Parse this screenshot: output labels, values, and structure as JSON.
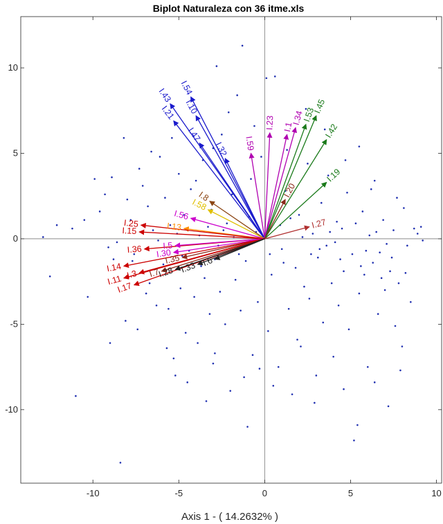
{
  "chart_data": {
    "type": "scatter",
    "title": "Biplot Naturaleza con 36 itme.xls",
    "xlabel": "Axis 1 - ( 14.2632% )",
    "ylabel": "",
    "xlim": [
      -14.2,
      10.3
    ],
    "ylim": [
      -14.3,
      13.0
    ],
    "xticks": [
      -10,
      -5,
      0,
      5,
      10
    ],
    "yticks": [
      -10,
      -5,
      0,
      5,
      10
    ],
    "xtick_labels": [
      "-10",
      "-5",
      "0",
      "5",
      "10"
    ],
    "ytick_labels": [
      "-10",
      "-5",
      "0",
      "5",
      "10"
    ],
    "grid": false,
    "origin_lines": true,
    "point_color": "#1f2fb0",
    "vectors": [
      {
        "name": "I.43",
        "x": -5.5,
        "y": 7.9,
        "color": "#1a1acc"
      },
      {
        "name": "I.54",
        "x": -4.3,
        "y": 8.3,
        "color": "#1a1acc"
      },
      {
        "name": "I.10",
        "x": -4.0,
        "y": 7.2,
        "color": "#1a1acc"
      },
      {
        "name": "I.21",
        "x": -5.3,
        "y": 6.9,
        "color": "#1a1acc"
      },
      {
        "name": "I.47",
        "x": -3.8,
        "y": 5.6,
        "color": "#1a1acc"
      },
      {
        "name": "I.32",
        "x": -2.3,
        "y": 4.7,
        "color": "#1a1acc"
      },
      {
        "name": "I.59",
        "x": -0.8,
        "y": 5.0,
        "color": "#b000b0"
      },
      {
        "name": "I.23",
        "x": 0.3,
        "y": 6.2,
        "color": "#b000b0"
      },
      {
        "name": "I.1",
        "x": 1.3,
        "y": 6.1,
        "color": "#b000b0"
      },
      {
        "name": "I.34",
        "x": 1.8,
        "y": 6.5,
        "color": "#b000b0"
      },
      {
        "name": "I.53",
        "x": 2.4,
        "y": 6.7,
        "color": "#1a7a1a"
      },
      {
        "name": "I.45",
        "x": 3.0,
        "y": 7.2,
        "color": "#1a7a1a"
      },
      {
        "name": "I.42",
        "x": 3.6,
        "y": 5.8,
        "color": "#1a7a1a"
      },
      {
        "name": "I.19",
        "x": 3.6,
        "y": 3.3,
        "color": "#1a7a1a"
      },
      {
        "name": "I.20",
        "x": 1.2,
        "y": 2.3,
        "color": "#8b2a1a"
      },
      {
        "name": "I.27",
        "x": 2.6,
        "y": 0.7,
        "color": "#b03030"
      },
      {
        "name": "I.8",
        "x": -3.2,
        "y": 2.2,
        "color": "#8b4513"
      },
      {
        "name": "I.58",
        "x": -3.3,
        "y": 1.7,
        "color": "#e0c000"
      },
      {
        "name": "I.56",
        "x": -4.3,
        "y": 1.2,
        "color": "#cc00cc"
      },
      {
        "name": "I.13",
        "x": -4.7,
        "y": 0.6,
        "color": "#ff8c00"
      },
      {
        "name": "I.25",
        "x": -7.2,
        "y": 0.8,
        "color": "#cc0000"
      },
      {
        "name": "I.15",
        "x": -7.3,
        "y": 0.4,
        "color": "#cc0000"
      },
      {
        "name": "I.36",
        "x": -7.0,
        "y": -0.6,
        "color": "#cc0000"
      },
      {
        "name": "I.5",
        "x": -5.2,
        "y": -0.4,
        "color": "#cc00cc"
      },
      {
        "name": "I.30",
        "x": -5.3,
        "y": -0.8,
        "color": "#cc00cc"
      },
      {
        "name": "I.35",
        "x": -4.8,
        "y": -1.1,
        "color": "#8b2a1a"
      },
      {
        "name": "I.14",
        "x": -8.2,
        "y": -1.6,
        "color": "#cc0000"
      },
      {
        "name": "I.11",
        "x": -8.2,
        "y": -2.3,
        "color": "#cc0000"
      },
      {
        "name": "I.17",
        "x": -7.6,
        "y": -2.7,
        "color": "#cc0000"
      },
      {
        "name": "I.3",
        "x": -7.3,
        "y": -2.0,
        "color": "#cc0000"
      },
      {
        "name": "I.7",
        "x": -6.0,
        "y": -1.9,
        "color": "#8b2a1a"
      },
      {
        "name": "I.28",
        "x": -5.2,
        "y": -1.8,
        "color": "#222222"
      },
      {
        "name": "I.33",
        "x": -3.9,
        "y": -1.5,
        "color": "#222222"
      },
      {
        "name": "I.6",
        "x": -2.9,
        "y": -1.2,
        "color": "#222222"
      }
    ],
    "points": [
      [
        -12.5,
        -2.2
      ],
      [
        -12.9,
        0.1
      ],
      [
        -12.1,
        0.8
      ],
      [
        -11.2,
        0.6
      ],
      [
        -11.0,
        -9.2
      ],
      [
        -10.3,
        -3.4
      ],
      [
        -9.9,
        3.5
      ],
      [
        -9.6,
        1.6
      ],
      [
        -9.3,
        2.6
      ],
      [
        -9.0,
        -6.1
      ],
      [
        -8.8,
        -1.2
      ],
      [
        -8.6,
        -0.2
      ],
      [
        -8.4,
        -13.1
      ],
      [
        -8.2,
        5.9
      ],
      [
        -8.1,
        -4.8
      ],
      [
        -8.0,
        2.3
      ],
      [
        -7.8,
        1.1
      ],
      [
        -7.6,
        -0.9
      ],
      [
        -7.4,
        -5.3
      ],
      [
        -7.1,
        3.1
      ],
      [
        -6.8,
        1.9
      ],
      [
        -6.7,
        -2.6
      ],
      [
        -6.5,
        0.5
      ],
      [
        -6.3,
        -3.9
      ],
      [
        -6.1,
        4.8
      ],
      [
        -5.9,
        -1.5
      ],
      [
        -5.8,
        2.4
      ],
      [
        -5.6,
        -4.1
      ],
      [
        -5.5,
        0.8
      ],
      [
        -5.3,
        -7.0
      ],
      [
        -5.2,
        -8.0
      ],
      [
        -5.0,
        3.8
      ],
      [
        -4.9,
        -2.9
      ],
      [
        -4.7,
        1.4
      ],
      [
        -4.6,
        -5.5
      ],
      [
        -4.4,
        -0.7
      ],
      [
        -4.3,
        2.9
      ],
      [
        -4.1,
        -3.4
      ],
      [
        -3.9,
        -6.1
      ],
      [
        -3.8,
        0.2
      ],
      [
        -3.6,
        4.6
      ],
      [
        -3.5,
        -2.3
      ],
      [
        -3.4,
        -9.5
      ],
      [
        -3.2,
        -4.4
      ],
      [
        -3.1,
        1.7
      ],
      [
        -2.9,
        -1.2
      ],
      [
        -2.8,
        10.1
      ],
      [
        -2.6,
        -3.1
      ],
      [
        -2.5,
        6.1
      ],
      [
        -2.3,
        -5.0
      ],
      [
        -2.2,
        0.9
      ],
      [
        -2.0,
        -8.9
      ],
      [
        -1.9,
        2.6
      ],
      [
        -1.7,
        -2.4
      ],
      [
        -1.6,
        8.4
      ],
      [
        -1.4,
        -4.2
      ],
      [
        -1.3,
        11.3
      ],
      [
        -1.1,
        -1.3
      ],
      [
        -1.0,
        -11.0
      ],
      [
        -0.8,
        3.5
      ],
      [
        -0.7,
        -6.8
      ],
      [
        -0.5,
        0.4
      ],
      [
        -0.4,
        -3.7
      ],
      [
        -0.2,
        4.8
      ],
      [
        0.2,
        -5.4
      ],
      [
        0.4,
        -2.1
      ],
      [
        0.6,
        9.5
      ],
      [
        0.8,
        -7.5
      ],
      [
        1.0,
        -0.6
      ],
      [
        1.2,
        2.8
      ],
      [
        1.4,
        -4.1
      ],
      [
        1.6,
        -9.1
      ],
      [
        1.8,
        -1.7
      ],
      [
        2.0,
        1.4
      ],
      [
        2.1,
        -6.3
      ],
      [
        2.3,
        -2.8
      ],
      [
        2.5,
        4.4
      ],
      [
        2.6,
        -3.5
      ],
      [
        2.8,
        0.3
      ],
      [
        3.0,
        -8.0
      ],
      [
        3.1,
        -1.1
      ],
      [
        3.3,
        2.1
      ],
      [
        3.4,
        -4.9
      ],
      [
        3.6,
        -0.4
      ],
      [
        3.7,
        3.7
      ],
      [
        3.9,
        -2.6
      ],
      [
        4.0,
        -6.9
      ],
      [
        4.2,
        1.0
      ],
      [
        4.3,
        -3.9
      ],
      [
        4.5,
        0.6
      ],
      [
        4.6,
        -1.9
      ],
      [
        4.8,
        2.7
      ],
      [
        4.9,
        -5.3
      ],
      [
        5.1,
        -0.9
      ],
      [
        5.2,
        -11.8
      ],
      [
        5.4,
        -10.9
      ],
      [
        5.5,
        -3.2
      ],
      [
        5.7,
        1.6
      ],
      [
        5.8,
        -2.1
      ],
      [
        6.0,
        -7.5
      ],
      [
        6.1,
        0.2
      ],
      [
        6.3,
        -1.4
      ],
      [
        6.4,
        3.4
      ],
      [
        6.6,
        -4.4
      ],
      [
        6.7,
        -0.8
      ],
      [
        6.9,
        1.1
      ],
      [
        7.0,
        -3.0
      ],
      [
        7.2,
        -9.8
      ],
      [
        7.3,
        -1.9
      ],
      [
        7.5,
        0.5
      ],
      [
        7.6,
        -5.1
      ],
      [
        7.8,
        -2.6
      ],
      [
        8.0,
        -6.3
      ],
      [
        8.1,
        1.8
      ],
      [
        8.3,
        -0.4
      ],
      [
        8.5,
        -3.7
      ],
      [
        8.7,
        0.6
      ],
      [
        8.9,
        0.3
      ],
      [
        9.1,
        0.7
      ],
      [
        9.2,
        -0.1
      ],
      [
        -6.9,
        -3.2
      ],
      [
        -4.8,
        -1.0
      ],
      [
        -3.7,
        -1.6
      ],
      [
        -2.4,
        0.5
      ],
      [
        -1.5,
        -0.9
      ],
      [
        -0.9,
        1.3
      ],
      [
        0.9,
        0.8
      ],
      [
        1.5,
        1.2
      ],
      [
        2.2,
        0.1
      ],
      [
        3.2,
        -0.6
      ],
      [
        4.1,
        -0.2
      ],
      [
        5.3,
        0.9
      ],
      [
        5.9,
        -0.7
      ],
      [
        6.5,
        0.4
      ],
      [
        7.1,
        -0.3
      ],
      [
        -7.7,
        -1.3
      ],
      [
        -6.2,
        -0.1
      ],
      [
        -5.1,
        0.3
      ],
      [
        -3.3,
        0.7
      ],
      [
        -2.7,
        -0.4
      ],
      [
        -1.8,
        0.1
      ],
      [
        0.3,
        -0.9
      ],
      [
        1.1,
        -1.4
      ],
      [
        2.7,
        -0.9
      ],
      [
        3.8,
        0.4
      ],
      [
        4.4,
        -1.2
      ],
      [
        5.6,
        -1.6
      ],
      [
        6.8,
        -2.3
      ],
      [
        7.4,
        -1.1
      ],
      [
        8.2,
        -2.0
      ],
      [
        -9.1,
        -0.5
      ],
      [
        -10.5,
        1.1
      ],
      [
        -8.9,
        3.6
      ],
      [
        -7.3,
        4.1
      ],
      [
        -6.6,
        5.1
      ],
      [
        -5.4,
        5.9
      ],
      [
        -4.0,
        3.4
      ],
      [
        -3.0,
        5.3
      ],
      [
        -2.1,
        7.4
      ],
      [
        -0.6,
        6.6
      ],
      [
        0.1,
        9.4
      ],
      [
        1.3,
        5.2
      ],
      [
        2.4,
        7.6
      ],
      [
        3.5,
        6.4
      ],
      [
        4.7,
        4.6
      ],
      [
        5.5,
        5.4
      ],
      [
        6.2,
        2.9
      ],
      [
        7.7,
        2.4
      ],
      [
        -5.7,
        -6.4
      ],
      [
        -4.5,
        -8.4
      ],
      [
        -3.0,
        -7.3
      ],
      [
        -1.2,
        -8.1
      ],
      [
        0.5,
        -8.6
      ],
      [
        2.9,
        -9.6
      ],
      [
        4.6,
        -8.8
      ],
      [
        6.4,
        -8.4
      ],
      [
        7.9,
        -7.7
      ],
      [
        -2.9,
        -6.7
      ],
      [
        -0.3,
        -7.6
      ],
      [
        1.9,
        -5.9
      ]
    ]
  }
}
